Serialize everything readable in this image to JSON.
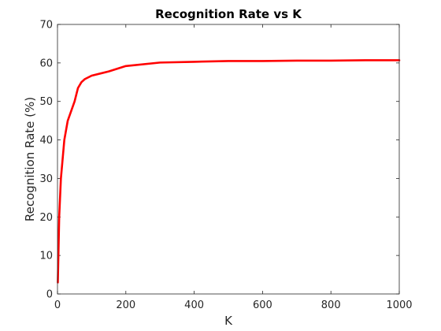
{
  "chart_data": {
    "type": "line",
    "title": "Recognition Rate vs K",
    "xlabel": "K",
    "ylabel": "Recognition Rate (%)",
    "xlim": [
      0,
      1000
    ],
    "ylim": [
      0,
      70
    ],
    "xticks": [
      0,
      200,
      400,
      600,
      800,
      1000
    ],
    "yticks": [
      0,
      10,
      20,
      30,
      40,
      50,
      60,
      70
    ],
    "grid": false,
    "series": [
      {
        "name": "Recognition Rate",
        "color": "#ff0000",
        "x": [
          1,
          5,
          10,
          20,
          30,
          50,
          60,
          70,
          80,
          100,
          150,
          200,
          300,
          400,
          500,
          600,
          700,
          800,
          900,
          1000
        ],
        "y": [
          3,
          20,
          30,
          40,
          45,
          50,
          53.5,
          55,
          55.8,
          56.7,
          57.8,
          59.2,
          60.1,
          60.3,
          60.5,
          60.5,
          60.6,
          60.6,
          60.7,
          60.7
        ]
      }
    ]
  }
}
